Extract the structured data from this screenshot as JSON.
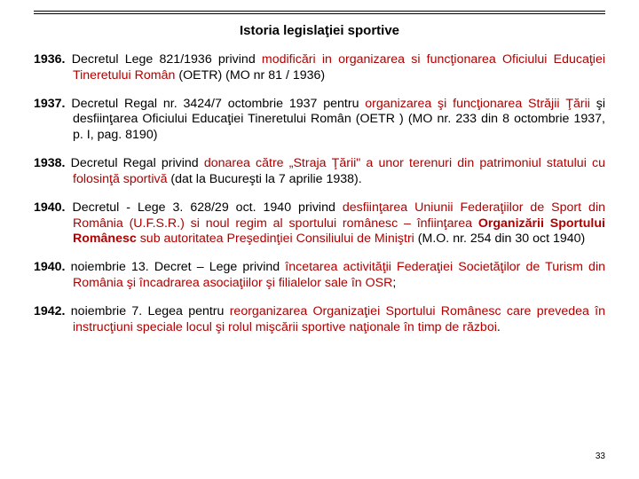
{
  "title": "Istoria legislaţiei sportive",
  "entries": [
    {
      "year": "1936.",
      "pre": " Decretul Lege 821/1936 privind ",
      "hl": "modificări in organizarea si funcţionarea Oficiului Educaţiei Tineretului Român",
      "post": " (OETR) (MO nr 81 / 1936)"
    },
    {
      "year": "1937.",
      "pre": " Decretul Regal nr. 3424/7 octombrie 1937 pentru ",
      "hl": "organizarea şi funcţionarea Străjii Ţării",
      "post": " şi desfiinţarea Oficiului Educaţiei Tineretului Român (OETR ) (MO nr. 233 din 8 octombrie 1937, p. I, pag. 8190)"
    },
    {
      "year": "1938.",
      "pre": " Decretul Regal privind ",
      "hl": "donarea către „Straja Ţării\" a unor terenuri din patrimoniul statului cu folosinţă sportivă",
      "post": " (dat la Bucureşti la 7 aprilie 1938)."
    },
    {
      "year": "1940.",
      "pre": " Decretul - Lege 3. 628/29 oct. 1940 privind ",
      "hl": "desfiinţarea Uniunii Federaţiilor de Sport din România (U.F.S.R.) si noul regim al sportului românesc – înfiinţarea ",
      "mid_bold_hl": "Organizării Sportului Românesc",
      "hl2": " sub autoritatea Preşedinţiei Consiliului de Miniştri",
      "post": " (M.O. nr. 254 din 30 oct 1940)"
    },
    {
      "year": "1940.",
      "pre": " noiembrie 13. Decret – Lege privind ",
      "hl": "încetarea activităţii Federaţiei Societăţilor de Turism din România şi încadrarea asociaţiilor şi filialelor sale în OSR",
      "post": ";"
    },
    {
      "year": "1942.",
      "pre": " noiembrie 7. Legea pentru ",
      "hl": "reorganizarea Organizaţiei Sportului Românesc care prevedea în instrucţiuni speciale locul şi rolul mişcării sportive naţionale în timp de război",
      "post": "."
    }
  ],
  "page_number": "33"
}
